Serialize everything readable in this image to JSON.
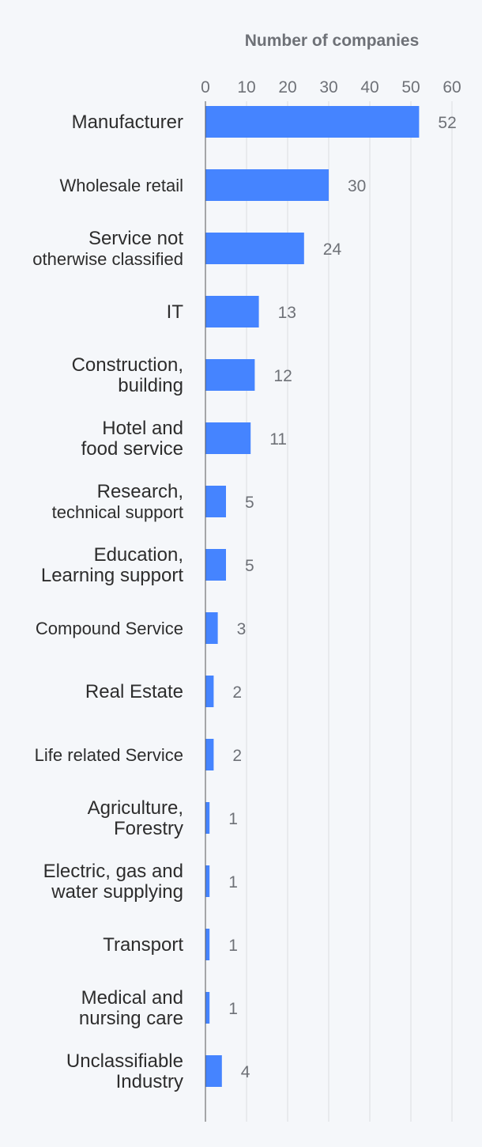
{
  "chart_data": {
    "type": "bar",
    "orientation": "horizontal",
    "title": "Number of companies",
    "xlim": [
      0,
      60
    ],
    "xticks": [
      "0",
      "10",
      "20",
      "30",
      "40",
      "50",
      "60"
    ],
    "grid": true,
    "bar_color": "#4584ff",
    "categories": [
      [
        "Manufacturer"
      ],
      [
        "Wholesale retail"
      ],
      [
        "Service not",
        "otherwise classified"
      ],
      [
        "IT"
      ],
      [
        "Construction,",
        "building"
      ],
      [
        "Hotel and",
        "food service"
      ],
      [
        "Research,",
        "technical support"
      ],
      [
        "Education,",
        "Learning support"
      ],
      [
        "Compound Service"
      ],
      [
        "Real Estate"
      ],
      [
        "Life related Service"
      ],
      [
        "Agriculture,",
        "Forestry"
      ],
      [
        "Electric, gas and",
        "water supplying"
      ],
      [
        "Transport"
      ],
      [
        "Medical and",
        "nursing care"
      ],
      [
        "Unclassifiable",
        "Industry"
      ]
    ],
    "values": [
      52,
      30,
      24,
      13,
      12,
      11,
      5,
      5,
      3,
      2,
      2,
      1,
      1,
      1,
      1,
      4
    ],
    "value_labels": [
      "52",
      "30",
      "24",
      "13",
      "12",
      "11",
      "5",
      "5",
      "3",
      "2",
      "2",
      "1",
      "1",
      "1",
      "1",
      "4"
    ]
  }
}
